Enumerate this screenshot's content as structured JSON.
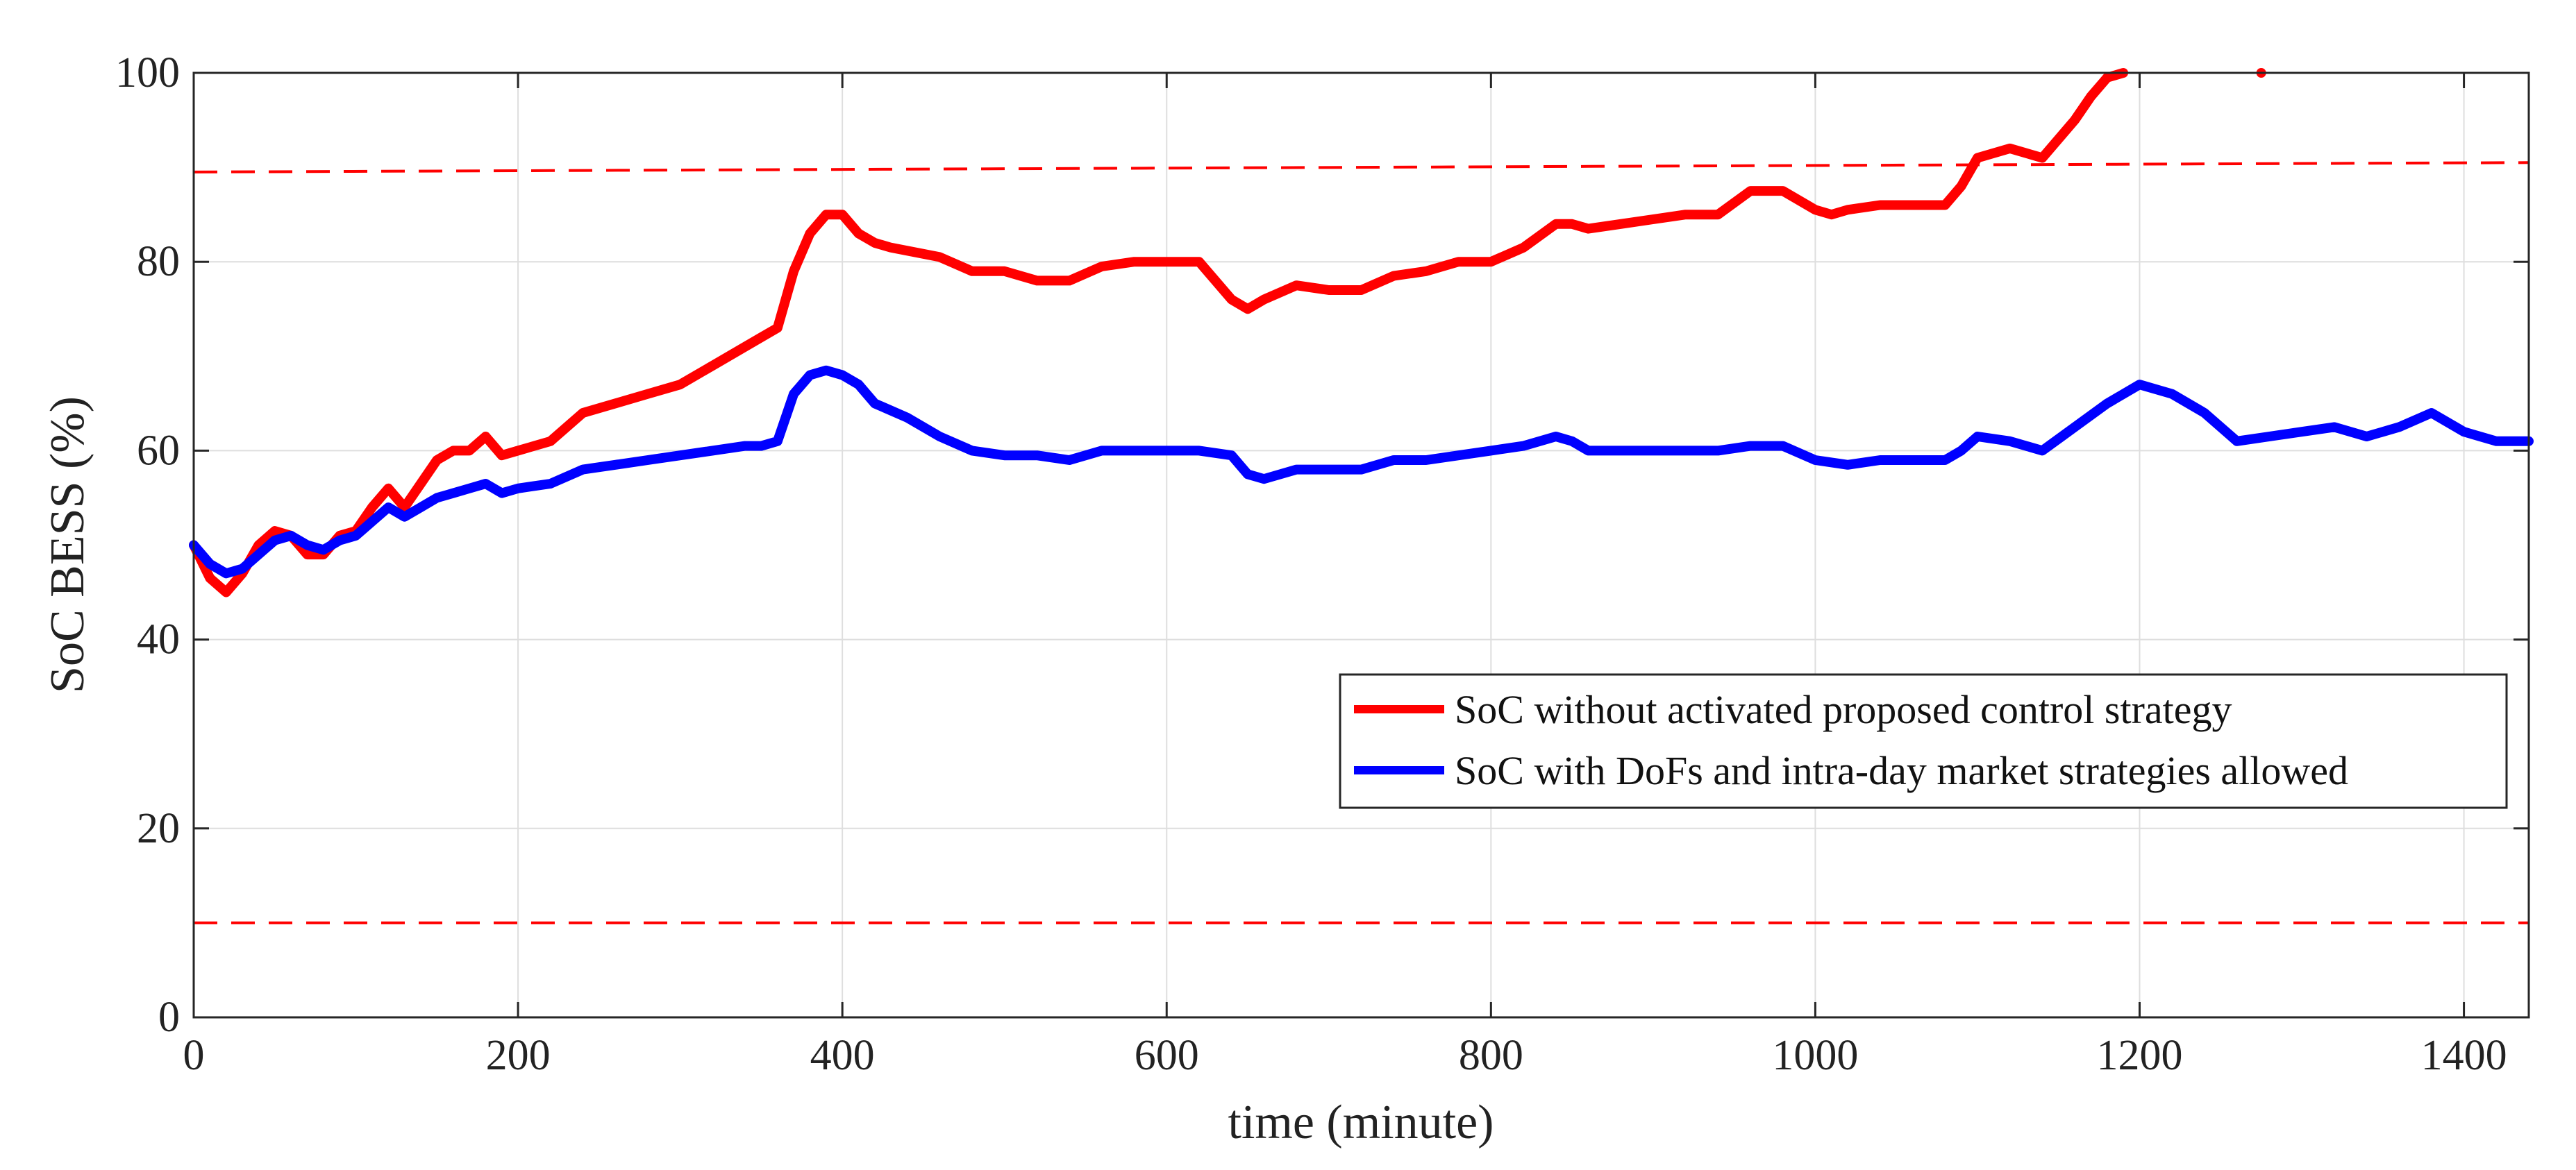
{
  "chart_data": {
    "type": "line",
    "title": "",
    "xlabel": "time (minute)",
    "ylabel": "SoC BESS (%)",
    "xlim": [
      0,
      1440
    ],
    "ylim": [
      0,
      100
    ],
    "grid": true,
    "legend_position": "right",
    "x_ticks": [
      0,
      200,
      400,
      600,
      800,
      1000,
      1200,
      1400
    ],
    "y_ticks": [
      0,
      20,
      40,
      60,
      80,
      100
    ],
    "series": [
      {
        "name": "SoC without activated proposed control strategy",
        "color": "#ff0000",
        "x": [
          0,
          10,
          20,
          30,
          40,
          50,
          60,
          70,
          80,
          90,
          100,
          110,
          120,
          130,
          140,
          150,
          160,
          170,
          180,
          190,
          200,
          220,
          240,
          260,
          280,
          300,
          320,
          340,
          350,
          360,
          370,
          380,
          390,
          400,
          410,
          420,
          430,
          460,
          480,
          500,
          520,
          540,
          560,
          580,
          600,
          620,
          640,
          650,
          660,
          680,
          700,
          720,
          740,
          760,
          780,
          800,
          820,
          840,
          850,
          860,
          880,
          900,
          920,
          940,
          960,
          980,
          1000,
          1010,
          1020,
          1040,
          1060,
          1080,
          1090,
          1100,
          1120,
          1140,
          1160,
          1170,
          1180,
          1190
        ],
        "values": [
          50,
          46.5,
          45,
          47,
          50,
          51.5,
          51,
          49,
          49,
          51,
          51.5,
          54,
          56,
          54,
          56.5,
          59,
          60,
          60,
          61.5,
          59.5,
          60,
          61,
          64,
          65,
          66,
          67,
          69,
          71,
          72,
          73,
          79,
          83,
          85,
          85,
          83,
          82,
          81.5,
          80.5,
          79,
          79,
          78,
          78,
          79.5,
          80,
          80,
          80,
          76,
          75,
          76,
          77.5,
          77,
          77,
          78.5,
          79,
          80,
          80,
          81.5,
          84,
          84,
          83.5,
          84,
          84.5,
          85,
          85,
          87.5,
          87.5,
          85.5,
          85,
          85.5,
          86,
          86,
          86,
          88,
          91,
          92,
          91,
          95,
          97.5,
          99.5,
          100
        ]
      },
      {
        "name": "SoC with DoFs and intra-day market strategies allowed",
        "color": "#0000ff",
        "x": [
          0,
          10,
          20,
          30,
          40,
          50,
          60,
          70,
          80,
          90,
          100,
          110,
          120,
          130,
          140,
          150,
          160,
          170,
          180,
          190,
          200,
          220,
          240,
          260,
          280,
          300,
          320,
          340,
          350,
          360,
          370,
          380,
          390,
          400,
          410,
          420,
          440,
          460,
          480,
          500,
          520,
          540,
          560,
          580,
          600,
          620,
          640,
          650,
          660,
          680,
          700,
          720,
          740,
          760,
          780,
          800,
          820,
          840,
          850,
          860,
          880,
          900,
          920,
          940,
          960,
          980,
          1000,
          1020,
          1040,
          1060,
          1080,
          1090,
          1100,
          1120,
          1140,
          1160,
          1180,
          1200,
          1220,
          1240,
          1260,
          1280,
          1300,
          1320,
          1340,
          1360,
          1380,
          1400,
          1420,
          1440
        ],
        "values": [
          50,
          48,
          47,
          47.5,
          49,
          50.5,
          51,
          50,
          49.5,
          50.5,
          51,
          52.5,
          54,
          53,
          54,
          55,
          55.5,
          56,
          56.5,
          55.5,
          56,
          56.5,
          58,
          58.5,
          59,
          59.5,
          60,
          60.5,
          60.5,
          61,
          66,
          68,
          68.5,
          68,
          67,
          65,
          63.5,
          61.5,
          60,
          59.5,
          59.5,
          59,
          60,
          60,
          60,
          60,
          59.5,
          57.5,
          57,
          58,
          58,
          58,
          59,
          59,
          59.5,
          60,
          60.5,
          61.5,
          61,
          60,
          60,
          60,
          60,
          60,
          60.5,
          60.5,
          59,
          58.5,
          59,
          59,
          59,
          60,
          61.5,
          61,
          60,
          62.5,
          65,
          67,
          66,
          64,
          61,
          61.5,
          62,
          62.5,
          61.5,
          62.5,
          64,
          62,
          61,
          61
        ]
      }
    ],
    "reference_lines": [
      {
        "name": "upper-limit",
        "color": "#ff0000",
        "style": "dashed",
        "x": [
          0,
          1440
        ],
        "values": [
          89.5,
          90.5
        ]
      },
      {
        "name": "lower-limit",
        "color": "#ff0000",
        "style": "dashed",
        "x": [
          0,
          1440
        ],
        "values": [
          10,
          10
        ]
      }
    ],
    "annotations": [
      {
        "name": "stray-point",
        "color": "#ff0000",
        "x": 1275,
        "y": 100
      }
    ]
  }
}
